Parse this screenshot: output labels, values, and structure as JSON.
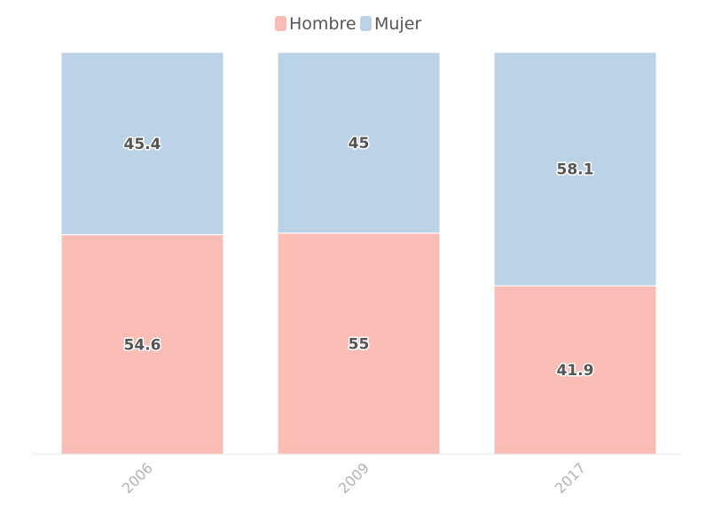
{
  "chart_data": {
    "type": "bar",
    "stacked": true,
    "categories": [
      "2006",
      "2009",
      "2017"
    ],
    "series": [
      {
        "name": "Hombre",
        "values": [
          54.6,
          55,
          41.9
        ],
        "color": "#f9bdb6"
      },
      {
        "name": "Mujer",
        "values": [
          45.4,
          45,
          58.1
        ],
        "color": "#bcd2e6"
      }
    ],
    "ylim": [
      0,
      100
    ],
    "legend_position": "top-center",
    "grid": false,
    "xlabel": "",
    "ylabel": "",
    "title": ""
  }
}
